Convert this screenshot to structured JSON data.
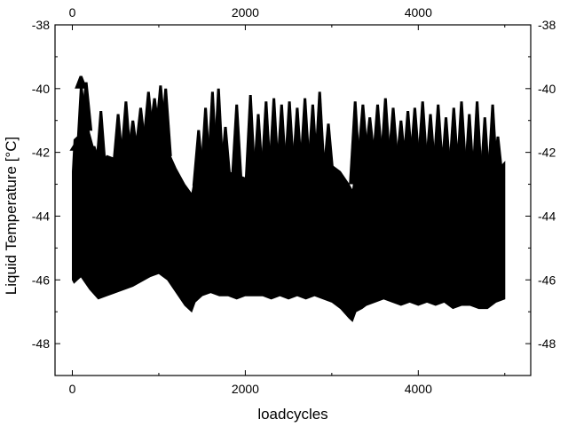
{
  "chart_data": {
    "type": "area",
    "title": "",
    "xlabel": "loadcycles",
    "ylabel": "Liquid Temperature [°C]",
    "xlim": [
      -200,
      5300
    ],
    "ylim": [
      -49,
      -38
    ],
    "x_ticks": [
      0,
      2000,
      4000
    ],
    "y_ticks": [
      -38,
      -40,
      -42,
      -44,
      -46,
      -48
    ],
    "x_tick_labels": [
      "0",
      "2000",
      "4000"
    ],
    "y_tick_labels": [
      "-38",
      "-40",
      "-42",
      "-44",
      "-46",
      "-48"
    ],
    "mirrored_axes": true,
    "grid": false,
    "legend": "none",
    "fill_color": "#000000",
    "series": [
      {
        "x": [
          0,
          20,
          60,
          100,
          150,
          200,
          300,
          400,
          500,
          700,
          900,
          1000,
          1100,
          1200,
          1300,
          1380,
          1420,
          1500,
          1600,
          1700,
          1800,
          1900,
          2000,
          2100,
          2200,
          2300,
          2400,
          2500,
          2600,
          2700,
          2800,
          2900,
          3000,
          3100,
          3200,
          3240,
          3280,
          3350,
          3400,
          3500,
          3600,
          3700,
          3800,
          3900,
          4000,
          4100,
          4200,
          4300,
          4400,
          4500,
          4600,
          4700,
          4800,
          4900,
          5000
        ],
        "upper": [
          -42.6,
          -41.6,
          -41.5,
          -39.6,
          -40.8,
          -41.4,
          -42.4,
          -42.1,
          -42.2,
          -41.8,
          -41.3,
          -41.0,
          -41.9,
          -42.5,
          -43.0,
          -43.3,
          -42.7,
          -42.6,
          -42.6,
          -42.5,
          -42.6,
          -42.7,
          -42.8,
          -42.8,
          -42.7,
          -42.6,
          -42.6,
          -42.5,
          -42.5,
          -42.4,
          -42.5,
          -42.4,
          -42.4,
          -42.6,
          -43.0,
          -43.2,
          -42.4,
          -42.0,
          -41.9,
          -42.0,
          -42.3,
          -42.1,
          -42.2,
          -42.3,
          -42.2,
          -42.4,
          -42.3,
          -42.6,
          -42.5,
          -42.5,
          -42.8,
          -42.8,
          -43.0,
          -42.6,
          -42.3
        ],
        "lower": [
          -46.0,
          -46.1,
          -46.0,
          -45.9,
          -46.1,
          -46.3,
          -46.6,
          -46.5,
          -46.4,
          -46.2,
          -45.9,
          -45.8,
          -46.0,
          -46.4,
          -46.8,
          -47.0,
          -46.7,
          -46.5,
          -46.4,
          -46.5,
          -46.5,
          -46.6,
          -46.5,
          -46.5,
          -46.5,
          -46.6,
          -46.5,
          -46.6,
          -46.5,
          -46.6,
          -46.5,
          -46.6,
          -46.7,
          -46.9,
          -47.2,
          -47.3,
          -47.0,
          -46.9,
          -46.8,
          -46.7,
          -46.6,
          -46.7,
          -46.8,
          -46.7,
          -46.8,
          -46.7,
          -46.8,
          -46.7,
          -46.9,
          -46.8,
          -46.8,
          -46.9,
          -46.9,
          -46.7,
          -46.6
        ],
        "spikes": [
          {
            "x": 40,
            "y": -41.7
          },
          {
            "x": 100,
            "y": -39.6
          },
          {
            "x": 160,
            "y": -39.8
          },
          {
            "x": 250,
            "y": -41.8
          },
          {
            "x": 330,
            "y": -40.7
          },
          {
            "x": 530,
            "y": -40.8
          },
          {
            "x": 620,
            "y": -40.4
          },
          {
            "x": 700,
            "y": -41.0
          },
          {
            "x": 790,
            "y": -40.6
          },
          {
            "x": 880,
            "y": -40.1
          },
          {
            "x": 950,
            "y": -40.3
          },
          {
            "x": 1020,
            "y": -39.9
          },
          {
            "x": 1080,
            "y": -40.0
          },
          {
            "x": 1460,
            "y": -41.3
          },
          {
            "x": 1540,
            "y": -40.6
          },
          {
            "x": 1620,
            "y": -40.1
          },
          {
            "x": 1690,
            "y": -40.0
          },
          {
            "x": 1770,
            "y": -41.2
          },
          {
            "x": 1900,
            "y": -40.5
          },
          {
            "x": 2060,
            "y": -40.2
          },
          {
            "x": 2150,
            "y": -40.8
          },
          {
            "x": 2240,
            "y": -40.4
          },
          {
            "x": 2330,
            "y": -40.3
          },
          {
            "x": 2420,
            "y": -40.5
          },
          {
            "x": 2510,
            "y": -40.4
          },
          {
            "x": 2600,
            "y": -40.6
          },
          {
            "x": 2690,
            "y": -40.3
          },
          {
            "x": 2780,
            "y": -40.5
          },
          {
            "x": 2860,
            "y": -40.1
          },
          {
            "x": 2960,
            "y": -41.1
          },
          {
            "x": 3270,
            "y": -40.4
          },
          {
            "x": 3360,
            "y": -40.5
          },
          {
            "x": 3440,
            "y": -40.9
          },
          {
            "x": 3530,
            "y": -40.5
          },
          {
            "x": 3620,
            "y": -40.3
          },
          {
            "x": 3710,
            "y": -40.6
          },
          {
            "x": 3800,
            "y": -41.0
          },
          {
            "x": 3880,
            "y": -40.7
          },
          {
            "x": 3960,
            "y": -40.6
          },
          {
            "x": 4050,
            "y": -40.4
          },
          {
            "x": 4140,
            "y": -40.8
          },
          {
            "x": 4230,
            "y": -40.5
          },
          {
            "x": 4320,
            "y": -40.9
          },
          {
            "x": 4410,
            "y": -40.6
          },
          {
            "x": 4500,
            "y": -40.4
          },
          {
            "x": 4590,
            "y": -40.8
          },
          {
            "x": 4680,
            "y": -40.4
          },
          {
            "x": 4770,
            "y": -40.9
          },
          {
            "x": 4860,
            "y": -40.5
          },
          {
            "x": 4920,
            "y": -41.5
          }
        ]
      }
    ]
  }
}
